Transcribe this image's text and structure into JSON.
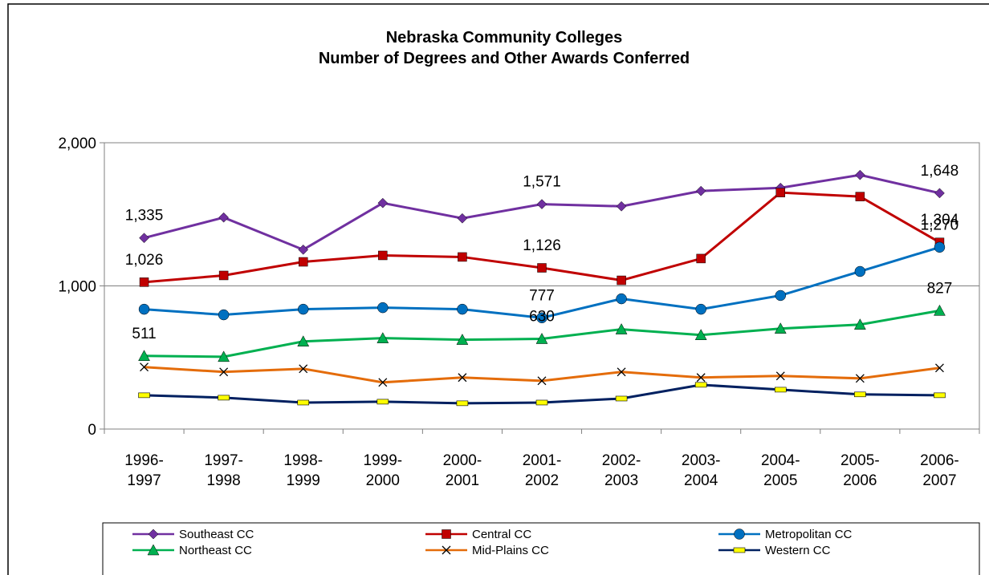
{
  "chart_data": {
    "type": "line",
    "title": [
      "Nebraska Community Colleges",
      "Number of Degrees and Other Awards Conferred"
    ],
    "categories": [
      "1996-1997",
      "1997-1998",
      "1998-1999",
      "1999-2000",
      "2000-2001",
      "2001-2002",
      "2002-2003",
      "2003-2004",
      "2004-2005",
      "2005-2006",
      "2006-2007"
    ],
    "ylim": [
      0,
      2000
    ],
    "yticks": [
      {
        "value": 0,
        "label": "0"
      },
      {
        "value": 1000,
        "label": "1,000"
      },
      {
        "value": 2000,
        "label": "2,000"
      }
    ],
    "grid": true,
    "legend": "bottom",
    "series": [
      {
        "name": "Southeast CC",
        "color": "#7030a0",
        "marker": "diamond",
        "values": [
          1335,
          1478,
          1253,
          1579,
          1472,
          1571,
          1556,
          1663,
          1685,
          1775,
          1648
        ],
        "value_labels": [
          "1,335",
          null,
          null,
          null,
          null,
          "1,571",
          null,
          null,
          null,
          null,
          "1,648"
        ]
      },
      {
        "name": "Central CC",
        "color": "#c00000",
        "marker": "square",
        "values": [
          1026,
          1073,
          1168,
          1213,
          1202,
          1126,
          1039,
          1191,
          1652,
          1624,
          1304
        ],
        "value_labels": [
          "1,026",
          null,
          null,
          null,
          null,
          "1,126",
          null,
          null,
          null,
          null,
          "1,304"
        ]
      },
      {
        "name": "Metropolitan CC",
        "color": "#0070c0",
        "marker": "circle",
        "values": [
          837,
          798,
          837,
          848,
          837,
          777,
          910,
          837,
          933,
          1101,
          1270
        ],
        "value_labels": [
          null,
          null,
          null,
          null,
          null,
          "777",
          null,
          null,
          null,
          null,
          "1,270"
        ]
      },
      {
        "name": "Northeast CC",
        "color": "#00b050",
        "marker": "triangle",
        "values": [
          511,
          505,
          612,
          635,
          624,
          630,
          697,
          657,
          702,
          730,
          827
        ],
        "value_labels": [
          "511",
          null,
          null,
          null,
          null,
          "630",
          null,
          null,
          null,
          null,
          "827"
        ]
      },
      {
        "name": "Mid-Plains CC",
        "color": "#e46c0a",
        "marker": "x",
        "values": [
          433,
          399,
          421,
          326,
          360,
          337,
          399,
          360,
          371,
          354,
          427
        ]
      },
      {
        "name": "Western CC",
        "color": "#002060",
        "marker": "dash",
        "values": [
          236,
          219,
          185,
          191,
          180,
          185,
          213,
          309,
          275,
          242,
          236
        ]
      }
    ]
  }
}
